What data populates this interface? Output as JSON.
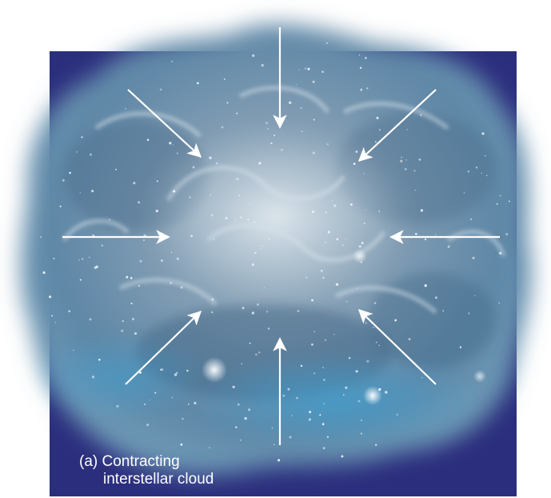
{
  "figure": {
    "caption_line1": "(a) Contracting",
    "caption_line2": "interstellar cloud",
    "colors": {
      "background_panel": "#2b2e7d",
      "cloud_outer": "#6f8fa8",
      "cloud_core": "#c9d6de",
      "cloud_teal": "#4c8cb4",
      "arrow": "#ffffff"
    },
    "arrow_count": 8,
    "arrow_direction": "inward"
  }
}
